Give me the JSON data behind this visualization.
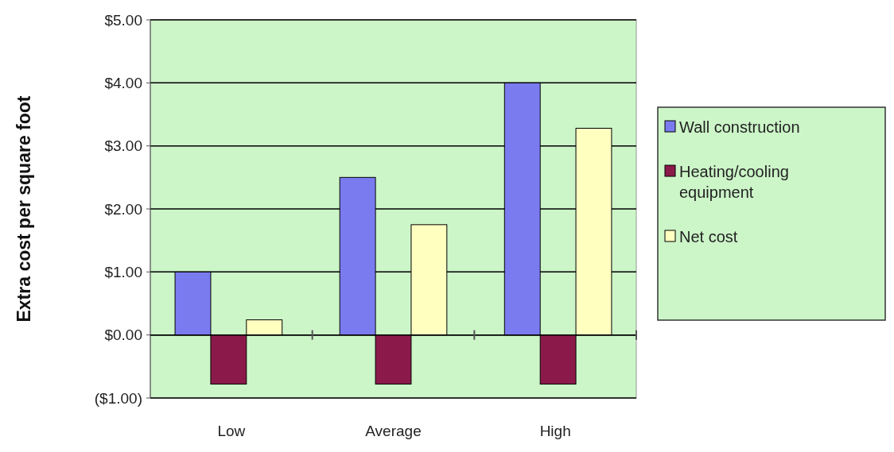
{
  "chart_data": {
    "type": "bar",
    "ylabel": "Extra cost per square foot",
    "categories": [
      "Low",
      "Average",
      "High"
    ],
    "series": [
      {
        "name": "Wall construction",
        "color": "#7b7bf0",
        "values": [
          1.0,
          2.5,
          4.0
        ]
      },
      {
        "name": "Heating/cooling equipment",
        "color": "#8b1a4a",
        "values": [
          -0.78,
          -0.78,
          -0.78
        ]
      },
      {
        "name": "Net cost",
        "color": "#ffffc0",
        "values": [
          0.24,
          1.75,
          3.28
        ]
      }
    ],
    "ylim": [
      -1,
      5
    ],
    "yticks": [
      {
        "value": -1,
        "label": "($1.00)"
      },
      {
        "value": 0,
        "label": "$0.00"
      },
      {
        "value": 1,
        "label": "$1.00"
      },
      {
        "value": 2,
        "label": "$2.00"
      },
      {
        "value": 3,
        "label": "$3.00"
      },
      {
        "value": 4,
        "label": "$4.00"
      },
      {
        "value": 5,
        "label": "$5.00"
      }
    ],
    "grid": "y",
    "legend": "right"
  }
}
